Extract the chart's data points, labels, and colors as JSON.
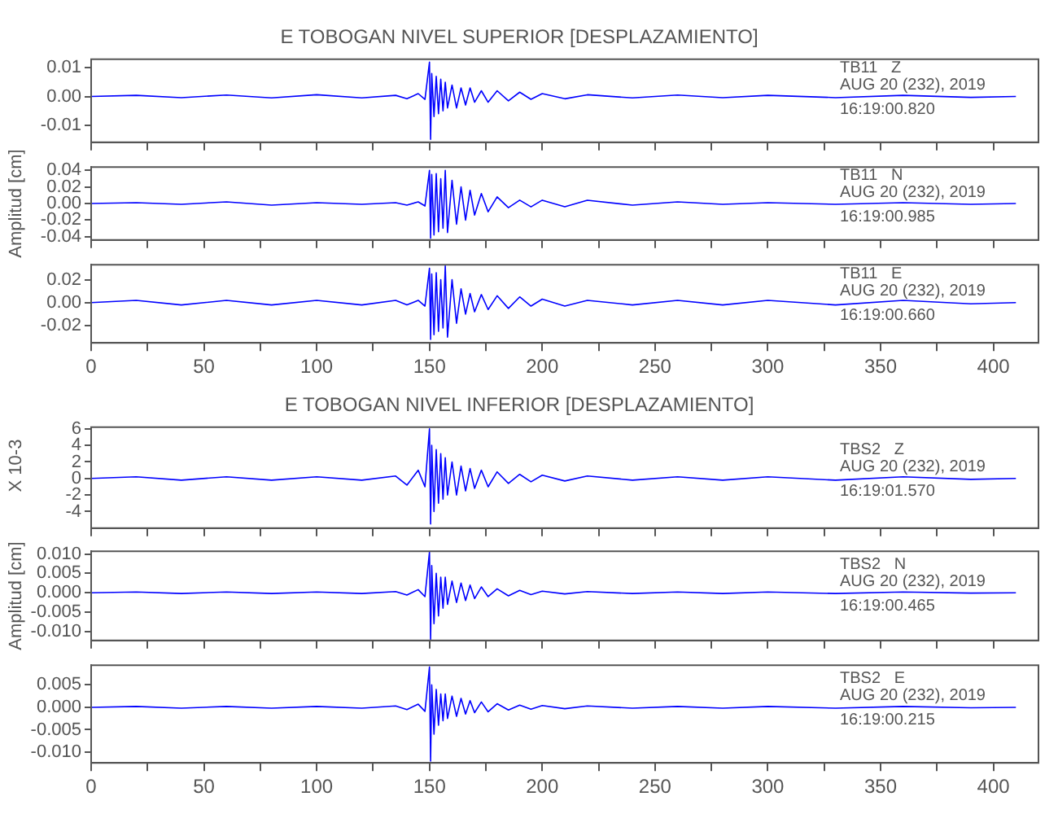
{
  "chart_data": [
    {
      "type": "line",
      "title": "E TOBOGAN NIVEL SUPERIOR [DESPLAZAMIENTO]",
      "color": "#0000ff",
      "xlim": [
        0,
        420
      ],
      "ylim": [
        -0.016,
        0.013
      ],
      "tick_labels": "y",
      "xticks": [
        0,
        {
          "value": 25,
          "label": null
        },
        50,
        {
          "value": 75,
          "label": null
        },
        100,
        {
          "value": 125,
          "label": null
        },
        150,
        {
          "value": 175,
          "label": null
        },
        200,
        {
          "value": 225,
          "label": null
        },
        250,
        {
          "value": 275,
          "label": null
        },
        300,
        {
          "value": 325,
          "label": null
        },
        350,
        {
          "value": 375,
          "label": null
        },
        400
      ],
      "yticks": [
        {
          "value": -0.01,
          "label": "-0.01"
        },
        {
          "value": 0,
          "label": "0.00"
        },
        {
          "value": 0.01,
          "label": "0.01"
        }
      ],
      "annotations": [
        "TB11   Z",
        "AUG 20 (232), 2019",
        "16:19:00.820"
      ],
      "x": [
        0,
        20,
        40,
        60,
        80,
        100,
        120,
        135,
        140,
        145,
        148,
        150,
        150.5,
        151,
        152,
        153,
        154,
        155,
        156,
        157,
        158,
        160,
        162,
        164,
        166,
        168,
        170,
        173,
        176,
        180,
        185,
        190,
        195,
        200,
        210,
        220,
        240,
        260,
        280,
        300,
        330,
        360,
        390,
        410
      ],
      "values": [
        0,
        0.0004,
        -0.0004,
        0.0005,
        -0.0005,
        0.0006,
        -0.0005,
        0.0004,
        -0.0008,
        0.001,
        -0.001,
        0.012,
        -0.015,
        0.008,
        -0.007,
        0.007,
        -0.006,
        0.006,
        -0.005,
        0.005,
        -0.004,
        0.004,
        -0.004,
        0.003,
        -0.003,
        0.003,
        -0.002,
        0.002,
        -0.002,
        0.002,
        -0.0015,
        0.0015,
        -0.001,
        0.001,
        -0.0008,
        0.0006,
        -0.0005,
        0.0005,
        -0.0004,
        0.0004,
        -0.0004,
        0.0004,
        -0.0003,
        0
      ]
    },
    {
      "type": "line",
      "ylabel": "Amplitud [cm]",
      "color": "#0000ff",
      "xlim": [
        0,
        420
      ],
      "ylim": [
        -0.044,
        0.044
      ],
      "tick_labels": "y",
      "xticks": [
        0,
        {
          "value": 25,
          "label": null
        },
        50,
        {
          "value": 75,
          "label": null
        },
        100,
        {
          "value": 125,
          "label": null
        },
        150,
        {
          "value": 175,
          "label": null
        },
        200,
        {
          "value": 225,
          "label": null
        },
        250,
        {
          "value": 275,
          "label": null
        },
        300,
        {
          "value": 325,
          "label": null
        },
        350,
        {
          "value": 375,
          "label": null
        },
        400
      ],
      "yticks": [
        {
          "value": -0.04,
          "label": "-0.04"
        },
        {
          "value": -0.02,
          "label": "-0.02"
        },
        {
          "value": 0,
          "label": "0.00"
        },
        {
          "value": 0.02,
          "label": "0.02"
        },
        {
          "value": 0.04,
          "label": "0.04"
        }
      ],
      "annotations": [
        "TB11   N",
        "AUG 20 (232), 2019",
        "16:19:00.985"
      ],
      "x": [
        0,
        20,
        40,
        60,
        80,
        100,
        120,
        135,
        140,
        145,
        148,
        150,
        150.5,
        151,
        152,
        153,
        154,
        155,
        156,
        157,
        158,
        160,
        162,
        164,
        166,
        168,
        170,
        173,
        176,
        180,
        185,
        190,
        195,
        200,
        210,
        220,
        240,
        260,
        280,
        300,
        330,
        360,
        390,
        410
      ],
      "values": [
        0,
        0.001,
        -0.001,
        0.002,
        -0.002,
        0.001,
        -0.001,
        0.001,
        -0.002,
        0.002,
        -0.003,
        0.04,
        -0.042,
        0.035,
        -0.038,
        0.036,
        -0.034,
        0.03,
        -0.03,
        0.04,
        -0.035,
        0.028,
        -0.025,
        0.02,
        -0.02,
        0.016,
        -0.014,
        0.012,
        -0.01,
        0.008,
        -0.005,
        0.004,
        -0.004,
        0.004,
        -0.004,
        0.004,
        -0.002,
        0.002,
        -0.001,
        0.001,
        -0.001,
        0.001,
        -0.001,
        0
      ]
    },
    {
      "type": "line",
      "color": "#0000ff",
      "xlim": [
        0,
        420
      ],
      "ylim": [
        -0.035,
        0.033
      ],
      "xticks": [
        0,
        {
          "value": 25,
          "label": null
        },
        50,
        {
          "value": 75,
          "label": null
        },
        100,
        {
          "value": 125,
          "label": null
        },
        150,
        {
          "value": 175,
          "label": null
        },
        200,
        {
          "value": 225,
          "label": null
        },
        250,
        {
          "value": 275,
          "label": null
        },
        300,
        {
          "value": 325,
          "label": null
        },
        350,
        {
          "value": 375,
          "label": null
        },
        400
      ],
      "yticks": [
        {
          "value": -0.02,
          "label": "-0.02"
        },
        {
          "value": 0,
          "label": "0.00"
        },
        {
          "value": 0.02,
          "label": "0.02"
        }
      ],
      "annotations": [
        "TB11   E",
        "AUG 20 (232), 2019",
        "16:19:00.660"
      ],
      "x": [
        0,
        20,
        40,
        60,
        80,
        100,
        120,
        135,
        140,
        145,
        148,
        150,
        150.5,
        151,
        152,
        153,
        154,
        155,
        156,
        157,
        158,
        160,
        162,
        164,
        166,
        168,
        170,
        173,
        176,
        180,
        185,
        190,
        195,
        200,
        210,
        220,
        240,
        260,
        280,
        300,
        330,
        360,
        390,
        410
      ],
      "values": [
        0,
        0.002,
        -0.002,
        0.002,
        -0.002,
        0.002,
        -0.002,
        0.002,
        -0.002,
        0.002,
        -0.003,
        0.03,
        -0.032,
        0.025,
        -0.028,
        0.026,
        -0.025,
        0.02,
        -0.022,
        0.032,
        -0.03,
        0.02,
        -0.018,
        0.012,
        -0.01,
        0.008,
        -0.008,
        0.007,
        -0.006,
        0.006,
        -0.005,
        0.005,
        -0.003,
        0.003,
        -0.003,
        0.002,
        -0.002,
        0.002,
        -0.002,
        0.002,
        -0.002,
        0.002,
        -0.001,
        0
      ]
    },
    {
      "type": "line",
      "title": "E TOBOGAN NIVEL INFERIOR [DESPLAZAMIENTO]",
      "ylabel": "X 10-3",
      "color": "#0000ff",
      "xlim": [
        0,
        420
      ],
      "ylim": [
        -6,
        6.2
      ],
      "tick_labels": "y",
      "xticks": [
        0,
        {
          "value": 25,
          "label": null
        },
        50,
        {
          "value": 75,
          "label": null
        },
        100,
        {
          "value": 125,
          "label": null
        },
        150,
        {
          "value": 175,
          "label": null
        },
        200,
        {
          "value": 225,
          "label": null
        },
        250,
        {
          "value": 275,
          "label": null
        },
        300,
        {
          "value": 325,
          "label": null
        },
        350,
        {
          "value": 375,
          "label": null
        },
        400
      ],
      "yticks": [
        -4,
        -2,
        0,
        2,
        4,
        6
      ],
      "annotations": [
        "TBS2   Z",
        "AUG 20 (232), 2019",
        "16:19:01.570"
      ],
      "x": [
        0,
        20,
        40,
        60,
        80,
        100,
        120,
        135,
        140,
        145,
        148,
        150,
        150.5,
        151,
        152,
        153,
        154,
        155,
        156,
        157,
        158,
        160,
        162,
        164,
        166,
        168,
        170,
        173,
        176,
        180,
        185,
        190,
        195,
        200,
        210,
        220,
        240,
        260,
        280,
        300,
        330,
        360,
        390,
        410
      ],
      "values": [
        0,
        0.2,
        -0.2,
        0.2,
        -0.2,
        0.2,
        -0.2,
        0.3,
        -0.8,
        1,
        -1,
        6,
        -5.5,
        4,
        -4,
        3.5,
        -3,
        3,
        -2.5,
        2.5,
        -2,
        2,
        -2,
        1.5,
        -1.5,
        1.2,
        -1.2,
        1,
        -1,
        0.8,
        -0.6,
        0.5,
        -0.4,
        0.4,
        -0.3,
        0.3,
        -0.2,
        0.2,
        -0.2,
        0.2,
        -0.2,
        0.2,
        -0.1,
        0
      ]
    },
    {
      "type": "line",
      "ylabel": "Amplitud [cm]",
      "color": "#0000ff",
      "xlim": [
        0,
        420
      ],
      "ylim": [
        -0.0123,
        0.0107
      ],
      "tick_labels": "y",
      "xticks": [
        0,
        {
          "value": 25,
          "label": null
        },
        50,
        {
          "value": 75,
          "label": null
        },
        100,
        {
          "value": 125,
          "label": null
        },
        150,
        {
          "value": 175,
          "label": null
        },
        200,
        {
          "value": 225,
          "label": null
        },
        250,
        {
          "value": 275,
          "label": null
        },
        300,
        {
          "value": 325,
          "label": null
        },
        350,
        {
          "value": 375,
          "label": null
        },
        400
      ],
      "yticks": [
        {
          "value": -0.01,
          "label": "-0.010"
        },
        {
          "value": -0.005,
          "label": "-0.005"
        },
        {
          "value": 0,
          "label": "0.000"
        },
        {
          "value": 0.005,
          "label": "0.005"
        },
        {
          "value": 0.01,
          "label": "0.010"
        }
      ],
      "annotations": [
        "TBS2   N",
        "AUG 20 (232), 2019",
        "16:19:00.465"
      ],
      "x": [
        0,
        20,
        40,
        60,
        80,
        100,
        120,
        135,
        140,
        145,
        148,
        150,
        150.5,
        151,
        152,
        153,
        154,
        155,
        156,
        157,
        158,
        160,
        162,
        164,
        166,
        168,
        170,
        173,
        176,
        180,
        185,
        190,
        195,
        200,
        210,
        220,
        240,
        260,
        280,
        300,
        330,
        360,
        390,
        410
      ],
      "values": [
        0,
        0.0002,
        -0.0002,
        0.0002,
        -0.0002,
        0.0002,
        -0.0002,
        0.0003,
        -0.0006,
        0.0008,
        -0.001,
        0.0105,
        -0.012,
        0.007,
        -0.008,
        0.005,
        -0.006,
        0.004,
        -0.004,
        0.004,
        -0.003,
        0.003,
        -0.0025,
        0.0025,
        -0.002,
        0.002,
        -0.0015,
        0.0015,
        -0.001,
        0.001,
        -0.0008,
        0.0006,
        -0.0005,
        0.0004,
        -0.0003,
        0.0003,
        -0.0002,
        0.0002,
        -0.0002,
        0.0002,
        -0.0002,
        0.0002,
        -0.0001,
        0
      ]
    },
    {
      "type": "line",
      "color": "#0000ff",
      "xlim": [
        0,
        420
      ],
      "ylim": [
        -0.0124,
        0.0094
      ],
      "xticks": [
        0,
        {
          "value": 25,
          "label": null
        },
        50,
        {
          "value": 75,
          "label": null
        },
        100,
        {
          "value": 125,
          "label": null
        },
        150,
        {
          "value": 175,
          "label": null
        },
        200,
        {
          "value": 225,
          "label": null
        },
        250,
        {
          "value": 275,
          "label": null
        },
        300,
        {
          "value": 325,
          "label": null
        },
        350,
        {
          "value": 375,
          "label": null
        },
        400
      ],
      "yticks": [
        {
          "value": -0.01,
          "label": "-0.010"
        },
        {
          "value": -0.005,
          "label": "-0.005"
        },
        {
          "value": 0,
          "label": "0.000"
        },
        {
          "value": 0.005,
          "label": "0.005"
        }
      ],
      "annotations": [
        "TBS2   E",
        "AUG 20 (232), 2019",
        "16:19:00.215"
      ],
      "x": [
        0,
        20,
        40,
        60,
        80,
        100,
        120,
        135,
        140,
        145,
        148,
        150,
        150.5,
        151,
        152,
        153,
        154,
        155,
        156,
        157,
        158,
        160,
        162,
        164,
        166,
        168,
        170,
        173,
        176,
        180,
        185,
        190,
        195,
        200,
        210,
        220,
        240,
        260,
        280,
        300,
        330,
        360,
        390,
        410
      ],
      "values": [
        0,
        0.0002,
        -0.0002,
        0.0002,
        -0.0002,
        0.0002,
        -0.0002,
        0.0003,
        -0.0005,
        0.0007,
        -0.0009,
        0.009,
        -0.012,
        0.005,
        -0.006,
        0.004,
        -0.004,
        0.003,
        -0.003,
        0.003,
        -0.0025,
        0.0025,
        -0.002,
        0.002,
        -0.0015,
        0.0015,
        -0.0012,
        0.0012,
        -0.001,
        0.0008,
        -0.0006,
        0.0005,
        -0.0004,
        0.0004,
        -0.0003,
        0.0003,
        -0.0002,
        0.0002,
        -0.0002,
        0.0002,
        -0.0002,
        0.0002,
        -0.0001,
        0
      ]
    }
  ]
}
